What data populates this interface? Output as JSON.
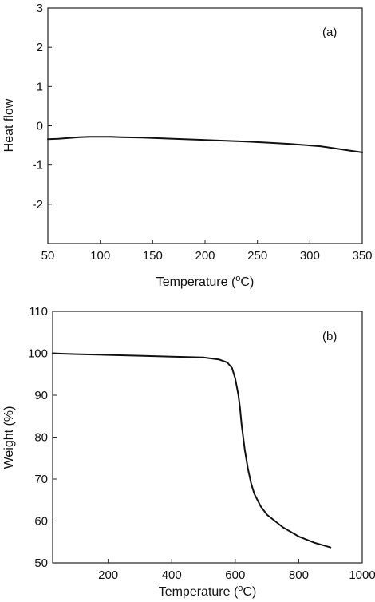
{
  "chart_data": [
    {
      "type": "line",
      "panel_label": "(a)",
      "xlabel": "Temperature (",
      "xlabel_sup": "o",
      "xlabel_end": "C)",
      "ylabel": "Heat flow",
      "xlim": [
        50,
        350
      ],
      "ylim": [
        -3,
        3
      ],
      "xticks": [
        50,
        100,
        150,
        200,
        250,
        300,
        350
      ],
      "yticks": [
        -2,
        -1,
        0,
        1,
        2,
        3
      ],
      "grid": false,
      "series": [
        {
          "x": [
            50,
            60,
            70,
            80,
            90,
            100,
            110,
            120,
            140,
            160,
            180,
            200,
            220,
            240,
            260,
            280,
            300,
            310,
            320,
            330,
            340,
            350
          ],
          "y": [
            -0.34,
            -0.33,
            -0.31,
            -0.29,
            -0.28,
            -0.28,
            -0.28,
            -0.29,
            -0.3,
            -0.32,
            -0.34,
            -0.36,
            -0.38,
            -0.4,
            -0.43,
            -0.46,
            -0.5,
            -0.52,
            -0.56,
            -0.6,
            -0.64,
            -0.68
          ]
        }
      ]
    },
    {
      "type": "line",
      "panel_label": "(b)",
      "xlabel": "Temperature (",
      "xlabel_sup": "o",
      "xlabel_end": "C)",
      "ylabel": "Weight (%)",
      "xlim": [
        25,
        1000
      ],
      "ylim": [
        50,
        110
      ],
      "xticks": [
        200,
        400,
        600,
        800,
        1000
      ],
      "yticks": [
        50,
        60,
        70,
        80,
        90,
        100,
        110
      ],
      "grid": false,
      "series": [
        {
          "x": [
            25,
            50,
            100,
            200,
            300,
            400,
            500,
            550,
            575,
            590,
            600,
            610,
            615,
            620,
            625,
            630,
            640,
            650,
            660,
            680,
            700,
            750,
            800,
            850,
            900
          ],
          "y": [
            100,
            99.9,
            99.8,
            99.6,
            99.4,
            99.2,
            99,
            98.5,
            97.8,
            96.5,
            94,
            90,
            87,
            83,
            80,
            77,
            72.5,
            69,
            66.5,
            63.5,
            61.5,
            58.5,
            56.3,
            54.8,
            53.7
          ]
        }
      ]
    }
  ]
}
